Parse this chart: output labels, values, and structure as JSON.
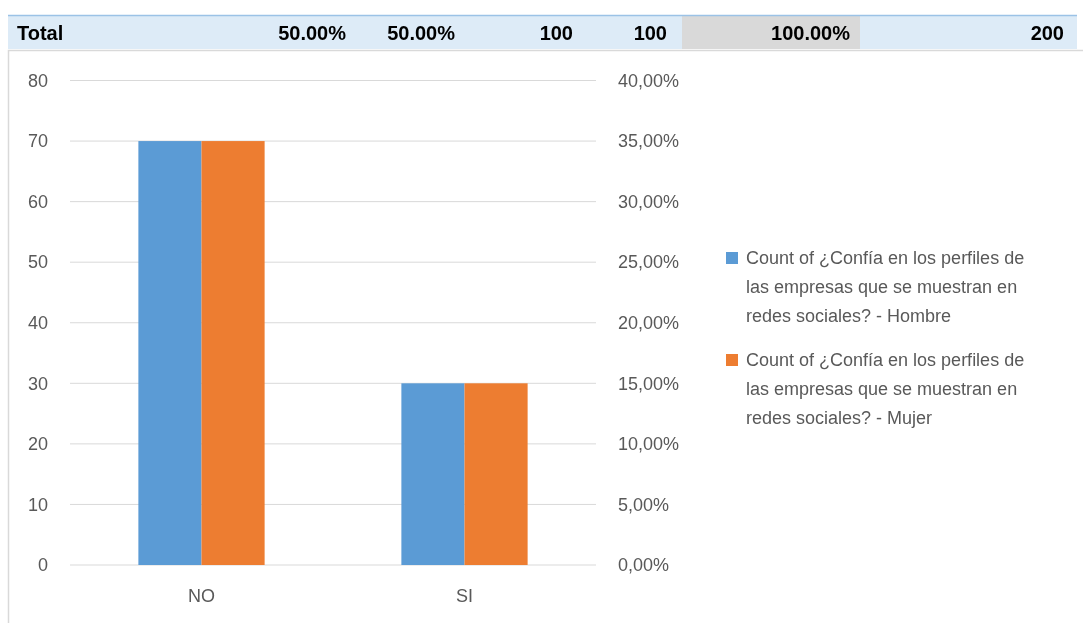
{
  "chart_data": {
    "type": "bar",
    "categories": [
      "NO",
      "SI"
    ],
    "series": [
      {
        "name": "Count of ¿Confía en los perfiles de las empresas que se muestran en redes sociales? - Hombre",
        "color": "#5b9bd5",
        "values": [
          70,
          30
        ]
      },
      {
        "name": "Count of ¿Confía en los perfiles de las empresas que se muestran en redes sociales? - Mujer",
        "color": "#ed7d31",
        "values": [
          70,
          30
        ]
      }
    ],
    "ylim": [
      0,
      80
    ],
    "yticks": [
      0,
      10,
      20,
      30,
      40,
      50,
      60,
      70,
      80
    ],
    "y2lim": [
      0,
      40
    ],
    "y2ticks": [
      {
        "value": 0,
        "label": "0,00%"
      },
      {
        "value": 5,
        "label": "5,00%"
      },
      {
        "value": 10,
        "label": "10,00%"
      },
      {
        "value": 15,
        "label": "15,00%"
      },
      {
        "value": 20,
        "label": "20,00%"
      },
      {
        "value": 25,
        "label": "25,00%"
      },
      {
        "value": 30,
        "label": "30,00%"
      },
      {
        "value": 35,
        "label": "35,00%"
      },
      {
        "value": 40,
        "label": "40,00%"
      }
    ],
    "grid": "y",
    "legend": "right",
    "annotations": [
      "Total",
      "50.00%",
      "50.00%",
      "100",
      "100",
      "100.00%",
      "200"
    ]
  }
}
